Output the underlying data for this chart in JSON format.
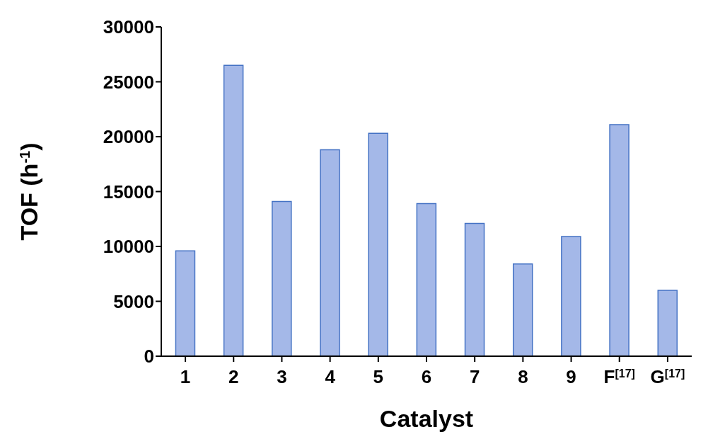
{
  "chart_data": {
    "type": "bar",
    "xlabel": "Catalyst",
    "ylabel": "TOF (h$^{-1}$)",
    "categories": [
      "1",
      "2",
      "3",
      "4",
      "5",
      "6",
      "7",
      "8",
      "9",
      "F$^{[17]}$",
      "G$^{[17]}$"
    ],
    "values": [
      9600,
      26500,
      14100,
      18800,
      20300,
      13900,
      12100,
      8400,
      10900,
      21100,
      6000
    ],
    "color": "#a4b8e8",
    "ylim": [
      0,
      30000
    ],
    "yticks": [
      0,
      5000,
      10000,
      15000,
      20000,
      25000,
      30000
    ],
    "grid": false,
    "legend": false
  }
}
